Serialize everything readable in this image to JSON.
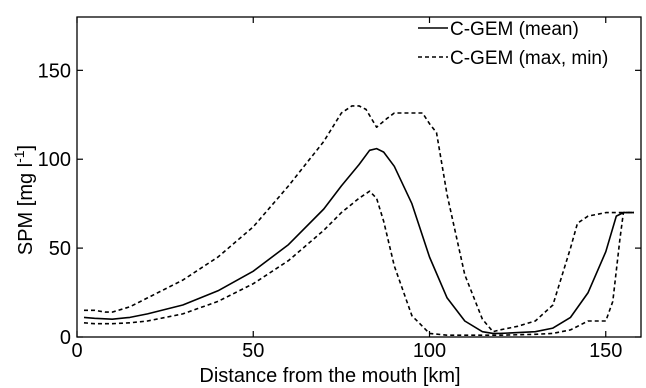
{
  "chart_data": {
    "type": "line",
    "xlabel": "Distance from the mouth [km]",
    "ylabel_main": "SPM [mg l",
    "ylabel_sup": "-1",
    "ylabel_close": "]",
    "xlim": [
      0,
      160
    ],
    "ylim": [
      0,
      180
    ],
    "x_ticks": [
      0,
      50,
      100,
      150
    ],
    "y_ticks": [
      0,
      50,
      100,
      150
    ],
    "grid": false,
    "legend_position": "top-right",
    "series": [
      {
        "name": "C-GEM (mean)",
        "style": "solid",
        "color": "#000000",
        "x": [
          2,
          5,
          10,
          15,
          20,
          30,
          40,
          50,
          60,
          70,
          75,
          80,
          83,
          85,
          87,
          90,
          95,
          100,
          105,
          110,
          115,
          118,
          120,
          125,
          130,
          135,
          140,
          145,
          150,
          153,
          155,
          158
        ],
        "y": [
          11,
          10.5,
          10,
          11,
          13,
          18,
          26,
          37,
          52,
          72,
          85,
          97,
          105,
          106,
          104,
          96,
          75,
          45,
          22,
          9,
          3,
          2,
          2,
          2.5,
          3,
          5,
          11,
          25,
          48,
          68,
          70,
          70
        ]
      },
      {
        "name": "C-GEM (max, min)",
        "style": "dashed",
        "color": "#000000",
        "x": [
          2,
          5,
          8,
          10,
          15,
          20,
          30,
          40,
          50,
          60,
          70,
          75,
          78,
          80,
          82,
          85,
          88,
          90,
          95,
          98,
          100,
          102,
          105,
          110,
          115,
          118,
          120,
          125,
          130,
          135,
          140,
          142,
          145,
          150,
          155,
          158
        ],
        "y": [
          15,
          15,
          14,
          14,
          17,
          22,
          32,
          45,
          62,
          85,
          110,
          126,
          130,
          130,
          128,
          118,
          123,
          126,
          126,
          126,
          120,
          115,
          80,
          35,
          10,
          3,
          4,
          6,
          9,
          18,
          50,
          64,
          68,
          70,
          70,
          70
        ]
      },
      {
        "name": "",
        "style": "dashed",
        "color": "#000000",
        "x": [
          2,
          5,
          10,
          15,
          20,
          30,
          40,
          50,
          60,
          70,
          75,
          80,
          83,
          85,
          87,
          90,
          95,
          100,
          105,
          110,
          120,
          130,
          135,
          140,
          145,
          150,
          152,
          154,
          155,
          158
        ],
        "y": [
          8,
          7.5,
          7.5,
          8,
          9,
          13,
          20,
          30,
          43,
          60,
          70,
          78,
          82,
          78,
          65,
          40,
          12,
          2,
          1,
          1,
          1,
          1.5,
          2,
          4,
          9,
          9,
          20,
          55,
          70,
          70
        ]
      }
    ]
  }
}
